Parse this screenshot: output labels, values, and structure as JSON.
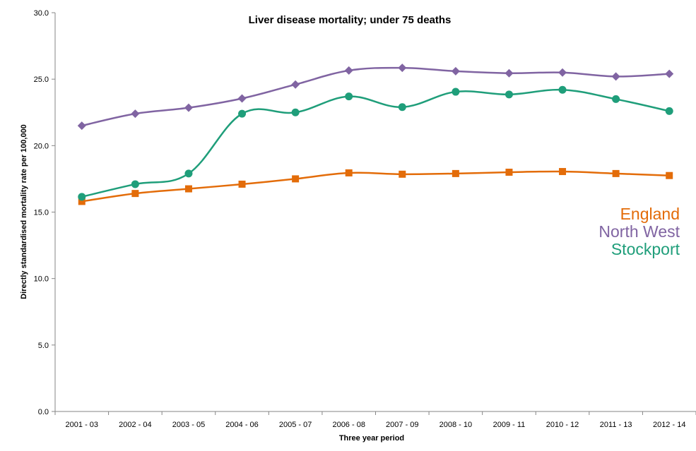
{
  "chart_data": {
    "type": "line",
    "title": "Liver disease mortality; under 75 deaths",
    "xlabel": "Three year period",
    "ylabel": "Directly standardised mortality rate per 100,000",
    "ylim": [
      0,
      30
    ],
    "yticks": [
      "0.0",
      "5.0",
      "10.0",
      "15.0",
      "20.0",
      "25.0",
      "30.0"
    ],
    "ytick_values": [
      0,
      5,
      10,
      15,
      20,
      25,
      30
    ],
    "categories": [
      "2001 - 03",
      "2002 - 04",
      "2003 - 05",
      "2004 - 06",
      "2005 - 07",
      "2006 - 08",
      "2007 - 09",
      "2008 - 10",
      "2009 - 11",
      "2010 - 12",
      "2011 - 13",
      "2012 - 14"
    ],
    "grid": false,
    "legend_position": "right",
    "series": [
      {
        "name": "England",
        "color": "#e36c09",
        "marker": "square",
        "values": [
          15.8,
          16.4,
          16.75,
          17.1,
          17.5,
          17.95,
          17.85,
          17.9,
          18.0,
          18.05,
          17.9,
          17.75
        ]
      },
      {
        "name": "North West",
        "color": "#8064a2",
        "marker": "diamond",
        "values": [
          21.5,
          22.4,
          22.85,
          23.55,
          24.6,
          25.65,
          25.85,
          25.6,
          25.45,
          25.5,
          25.2,
          25.4
        ]
      },
      {
        "name": "Stockport",
        "color": "#1f9e7a",
        "marker": "circle",
        "values": [
          16.15,
          17.1,
          17.9,
          22.4,
          22.5,
          23.7,
          22.9,
          24.05,
          23.85,
          24.2,
          23.5,
          22.6
        ]
      }
    ]
  }
}
